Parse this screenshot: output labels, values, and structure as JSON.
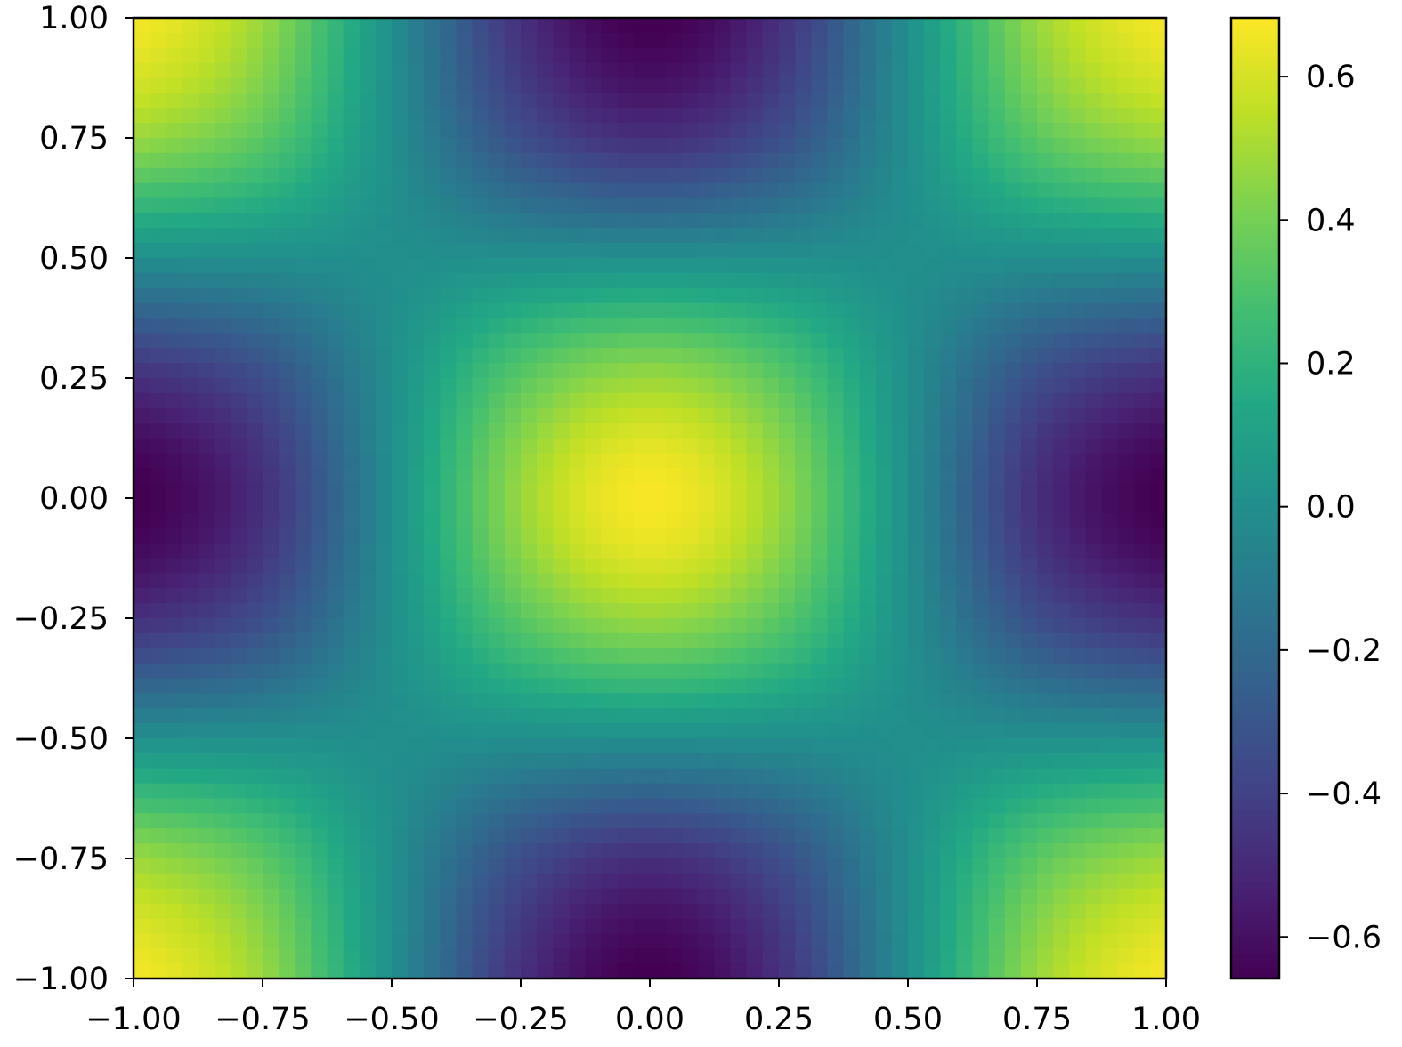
{
  "chart_data": {
    "type": "heatmap",
    "title": "",
    "xlabel": "",
    "ylabel": "",
    "xlim": [
      -1.0,
      1.0
    ],
    "ylim": [
      -1.0,
      1.0
    ],
    "x": [
      -1.0,
      -0.75,
      -0.5,
      -0.25,
      0.0,
      0.25,
      0.5,
      0.75,
      1.0
    ],
    "y": [
      1.0,
      0.75,
      0.5,
      0.25,
      0.0,
      -0.25,
      -0.5,
      -0.75,
      -1.0
    ],
    "values": [
      [
        0.67,
        0.474,
        0,
        -0.474,
        -0.67,
        -0.474,
        0,
        0.474,
        0.67
      ],
      [
        0.474,
        0.335,
        0,
        -0.335,
        -0.474,
        -0.335,
        0,
        0.335,
        0.474
      ],
      [
        0,
        0,
        0,
        0,
        0,
        0,
        0,
        0,
        0
      ],
      [
        -0.474,
        -0.335,
        0,
        0.335,
        0.474,
        0.335,
        0,
        -0.335,
        -0.474
      ],
      [
        -0.67,
        -0.474,
        0,
        0.474,
        0.67,
        0.474,
        0,
        -0.474,
        -0.67
      ],
      [
        -0.474,
        -0.335,
        0,
        0.335,
        0.474,
        0.335,
        0,
        -0.335,
        -0.474
      ],
      [
        0,
        0,
        0,
        0,
        0,
        0,
        0,
        0,
        0
      ],
      [
        0.474,
        0.335,
        0,
        -0.335,
        -0.474,
        -0.335,
        0,
        0.335,
        0.474
      ],
      [
        0.67,
        0.474,
        0,
        -0.474,
        -0.67,
        -0.474,
        0,
        0.474,
        0.67
      ]
    ],
    "colormap": "viridis",
    "colorbar_range": [
      -0.658,
      0.682
    ],
    "x_ticks": [
      -1.0,
      -0.75,
      -0.5,
      -0.25,
      0.0,
      0.25,
      0.5,
      0.75,
      1.0
    ],
    "x_tick_labels": [
      "−1.00",
      "−0.75",
      "−0.50",
      "−0.25",
      "0.00",
      "0.25",
      "0.50",
      "0.75",
      "1.00"
    ],
    "y_ticks": [
      1.0,
      0.75,
      0.5,
      0.25,
      0.0,
      -0.25,
      -0.5,
      -0.75,
      -1.0
    ],
    "y_tick_labels": [
      "1.00",
      "0.75",
      "0.50",
      "0.25",
      "0.00",
      "−0.25",
      "−0.50",
      "−0.75",
      "−1.00"
    ],
    "colorbar_ticks": [
      0.6,
      0.4,
      0.2,
      0.0,
      -0.2,
      -0.4,
      -0.6
    ],
    "colorbar_tick_labels": [
      "0.6",
      "0.4",
      "0.2",
      "0.0",
      "−0.2",
      "−0.4",
      "−0.6"
    ],
    "grid": false,
    "legend": "none"
  }
}
